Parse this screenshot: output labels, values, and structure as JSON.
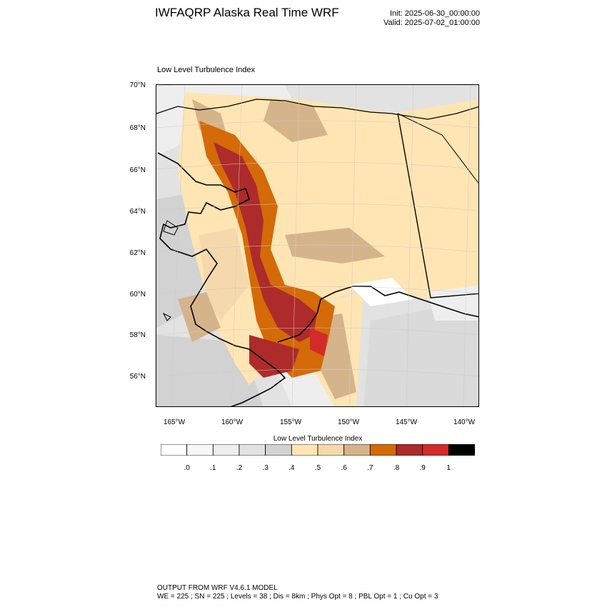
{
  "header": {
    "title": "IWFAQRP Alaska Real Time WRF",
    "init": "Init: 2025-06-30_00:00:00",
    "valid": "Valid: 2025-07-02_01:00:00"
  },
  "plot": {
    "title": "Low Level Turbulence Index",
    "lat_labels": [
      "70°N",
      "68°N",
      "66°N",
      "64°N",
      "62°N",
      "60°N",
      "58°N",
      "56°N"
    ],
    "lon_labels": [
      "165°W",
      "160°W",
      "155°W",
      "150°W",
      "145°W",
      "140°W"
    ]
  },
  "colorbar": {
    "title": "Low Level Turbulence Index",
    "labels": [
      ".0",
      ".1",
      ".2",
      ".3",
      ".4",
      ".5",
      ".6",
      ".7",
      ".8",
      ".9",
      "1"
    ],
    "colors": [
      "#ffffff",
      "#f7f7f7",
      "#eeeeee",
      "#e2e2e2",
      "#d2d2d2",
      "#fee5b3",
      "#f5d9ad",
      "#d5b48c",
      "#d46a08",
      "#ad2b2a",
      "#d32a2a",
      "#000000"
    ]
  },
  "footer": {
    "line1": "OUTPUT FROM WRF V4.6.1 MODEL",
    "line2": "WE = 225 ; SN = 225 ; Levels = 38 ; Dis = 8km ; Phys Opt = 8 ; PBL Opt = 1 ; Cu Opt = 3"
  }
}
